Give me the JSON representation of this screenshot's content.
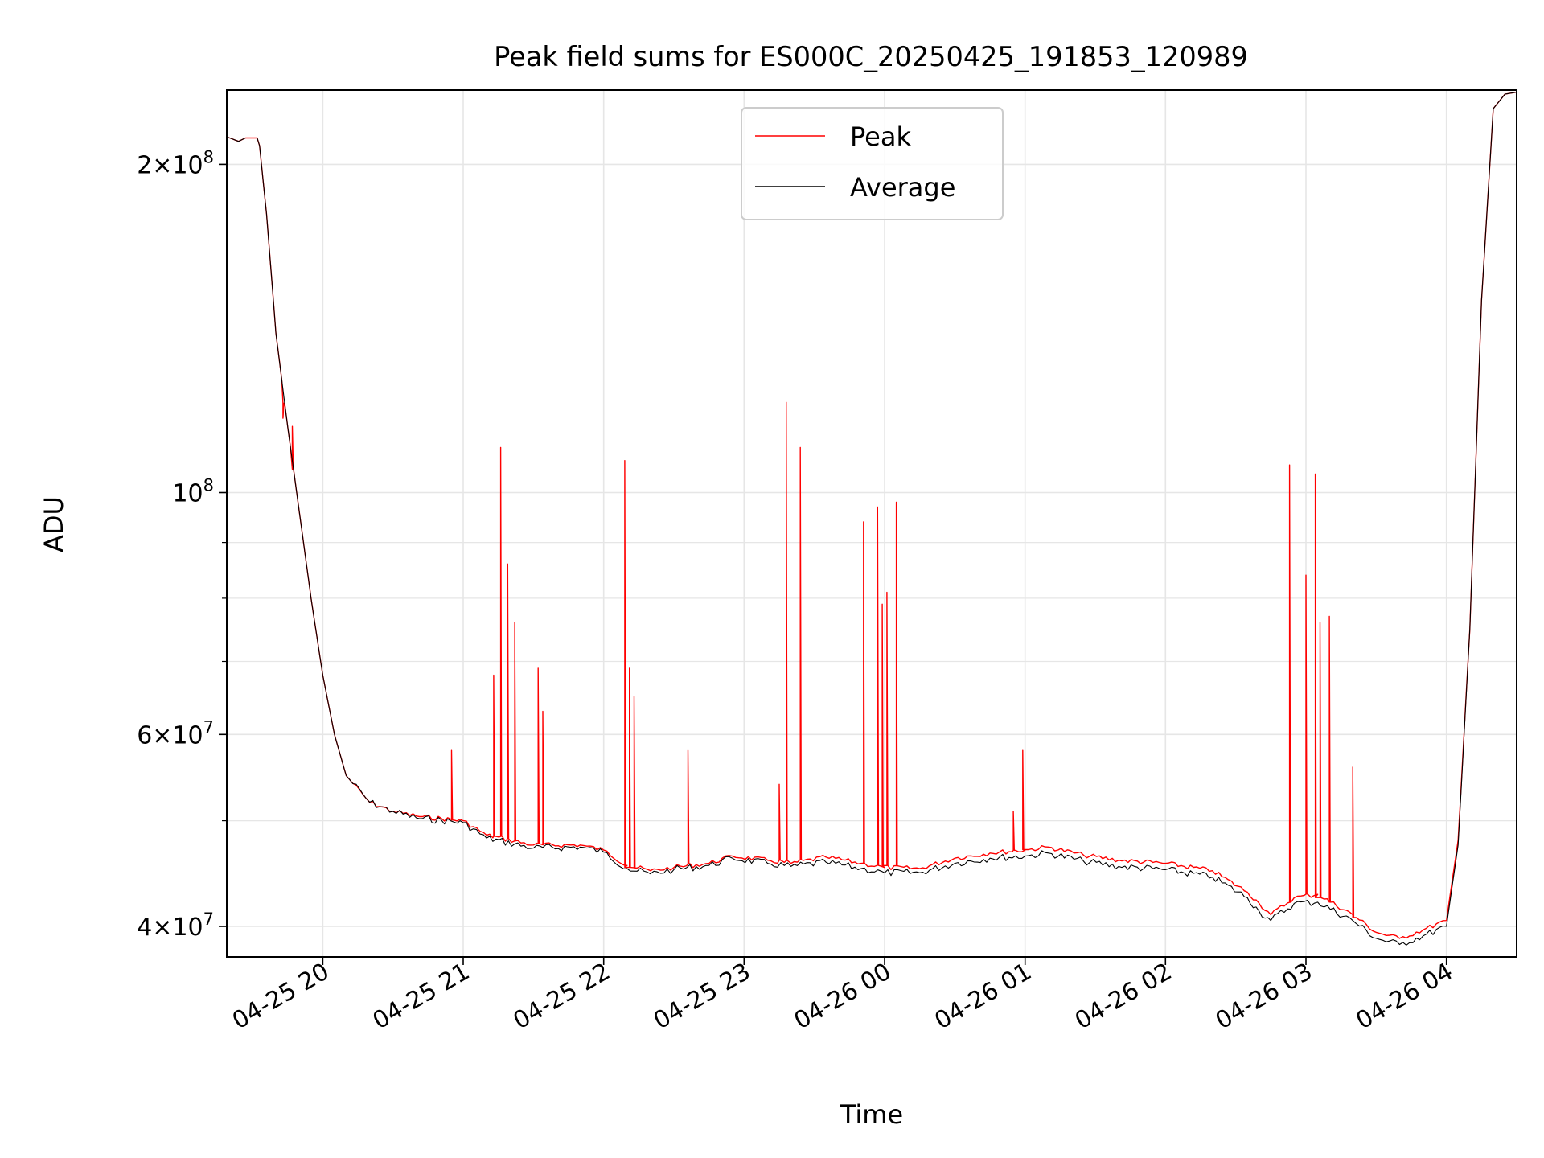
{
  "chart_data": {
    "type": "line",
    "title": "Peak field sums for ES000C_20250425_191853_120989",
    "xlabel": "Time",
    "ylabel": "ADU",
    "x_scale": "time",
    "y_scale": "log",
    "xlim": [
      "2025-04-25 19:19",
      "2025-04-26 04:30"
    ],
    "ylim": [
      37500000,
      234000000
    ],
    "grid": true,
    "legend_position": "upper center",
    "x_ticks": [
      {
        "t": "2025-04-25 20:00",
        "label": "04-25 20"
      },
      {
        "t": "2025-04-25 21:00",
        "label": "04-25 21"
      },
      {
        "t": "2025-04-25 22:00",
        "label": "04-25 22"
      },
      {
        "t": "2025-04-25 23:00",
        "label": "04-25 23"
      },
      {
        "t": "2025-04-26 00:00",
        "label": "04-26 00"
      },
      {
        "t": "2025-04-26 01:00",
        "label": "04-26 01"
      },
      {
        "t": "2025-04-26 02:00",
        "label": "04-26 02"
      },
      {
        "t": "2025-04-26 03:00",
        "label": "04-26 03"
      },
      {
        "t": "2025-04-26 04:00",
        "label": "04-26 04"
      }
    ],
    "y_major_ticks": [
      {
        "v": 40000000,
        "base": "4",
        "exp": "7"
      },
      {
        "v": 60000000,
        "base": "6",
        "exp": "7"
      },
      {
        "v": 100000000,
        "base": "",
        "exp": "8"
      },
      {
        "v": 200000000,
        "base": "2",
        "exp": "8"
      }
    ],
    "y_minor_ticks": [
      50000000,
      70000000,
      80000000,
      90000000
    ],
    "series": [
      {
        "name": "Peak",
        "color": "#ff0000",
        "baseline": [
          [
            "2025-04-25 19:19",
            212000000
          ],
          [
            "2025-04-25 19:24",
            210000000
          ],
          [
            "2025-04-25 19:27",
            211500000
          ],
          [
            "2025-04-25 19:32",
            211500000
          ],
          [
            "2025-04-25 19:33",
            208000000
          ],
          [
            "2025-04-25 19:36",
            180000000
          ],
          [
            "2025-04-25 19:40",
            140000000
          ],
          [
            "2025-04-25 19:45",
            115000000
          ],
          [
            "2025-04-25 19:50",
            96000000
          ],
          [
            "2025-04-25 19:55",
            80000000
          ],
          [
            "2025-04-25 20:00",
            68000000
          ],
          [
            "2025-04-25 20:05",
            60000000
          ],
          [
            "2025-04-25 20:10",
            55000000
          ],
          [
            "2025-04-25 20:20",
            52000000
          ],
          [
            "2025-04-25 20:30",
            51000000
          ],
          [
            "2025-04-25 20:40",
            50500000
          ],
          [
            "2025-04-25 21:00",
            50000000
          ],
          [
            "2025-04-25 21:10",
            48500000
          ],
          [
            "2025-04-25 21:30",
            47500000
          ],
          [
            "2025-04-25 21:50",
            47500000
          ],
          [
            "2025-04-25 22:00",
            47000000
          ],
          [
            "2025-04-25 22:10",
            45500000
          ],
          [
            "2025-04-25 22:20",
            45000000
          ],
          [
            "2025-04-25 22:30",
            45300000
          ],
          [
            "2025-04-25 22:45",
            45700000
          ],
          [
            "2025-04-25 22:55",
            46400000
          ],
          [
            "2025-04-25 23:10",
            46000000
          ],
          [
            "2025-04-25 23:20",
            45700000
          ],
          [
            "2025-04-25 23:35",
            46300000
          ],
          [
            "2025-04-25 23:50",
            45700000
          ],
          [
            "2025-04-26 00:00",
            45300000
          ],
          [
            "2025-04-26 00:15",
            45200000
          ],
          [
            "2025-04-26 00:30",
            46200000
          ],
          [
            "2025-04-26 00:45",
            46700000
          ],
          [
            "2025-04-26 01:00",
            47000000
          ],
          [
            "2025-04-26 01:10",
            47300000
          ],
          [
            "2025-04-26 01:25",
            46500000
          ],
          [
            "2025-04-26 01:40",
            46000000
          ],
          [
            "2025-04-26 02:00",
            45700000
          ],
          [
            "2025-04-26 02:20",
            45000000
          ],
          [
            "2025-04-26 02:35",
            43000000
          ],
          [
            "2025-04-26 02:40",
            42000000
          ],
          [
            "2025-04-26 02:45",
            41000000
          ],
          [
            "2025-04-26 02:55",
            42500000
          ],
          [
            "2025-04-26 03:05",
            42800000
          ],
          [
            "2025-04-26 03:20",
            41000000
          ],
          [
            "2025-04-26 03:30",
            39500000
          ],
          [
            "2025-04-26 03:40",
            39000000
          ],
          [
            "2025-04-26 03:50",
            39700000
          ],
          [
            "2025-04-26 04:00",
            40500000
          ],
          [
            "2025-04-26 04:05",
            48000000
          ],
          [
            "2025-04-26 04:10",
            75000000
          ],
          [
            "2025-04-26 04:15",
            150000000
          ],
          [
            "2025-04-26 04:20",
            225000000
          ],
          [
            "2025-04-26 04:25",
            232000000
          ],
          [
            "2025-04-26 04:30",
            233000000
          ]
        ],
        "spikes": [
          [
            "2025-04-25 19:43",
            117000000
          ],
          [
            "2025-04-25 19:47",
            115000000
          ],
          [
            "2025-04-25 20:55",
            58000000
          ],
          [
            "2025-04-25 21:13",
            68000000
          ],
          [
            "2025-04-25 21:16",
            110000000
          ],
          [
            "2025-04-25 21:19",
            86000000
          ],
          [
            "2025-04-25 21:22",
            76000000
          ],
          [
            "2025-04-25 21:32",
            69000000
          ],
          [
            "2025-04-25 21:34",
            63000000
          ],
          [
            "2025-04-25 22:09",
            107000000
          ],
          [
            "2025-04-25 22:11",
            69000000
          ],
          [
            "2025-04-25 22:13",
            65000000
          ],
          [
            "2025-04-25 22:36",
            58000000
          ],
          [
            "2025-04-25 23:15",
            54000000
          ],
          [
            "2025-04-25 23:18",
            121000000
          ],
          [
            "2025-04-25 23:24",
            110000000
          ],
          [
            "2025-04-25 23:51",
            94000000
          ],
          [
            "2025-04-25 23:57",
            97000000
          ],
          [
            "2025-04-25 23:59",
            79000000
          ],
          [
            "2025-04-26 00:01",
            81000000
          ],
          [
            "2025-04-26 00:05",
            98000000
          ],
          [
            "2025-04-26 00:55",
            51000000
          ],
          [
            "2025-04-26 00:59",
            58000000
          ],
          [
            "2025-04-26 02:53",
            106000000
          ],
          [
            "2025-04-26 03:00",
            84000000
          ],
          [
            "2025-04-26 03:04",
            104000000
          ],
          [
            "2025-04-26 03:06",
            76000000
          ],
          [
            "2025-04-26 03:10",
            77000000
          ],
          [
            "2025-04-26 03:20",
            56000000
          ]
        ]
      },
      {
        "name": "Average",
        "color": "#000000",
        "baseline": [
          [
            "2025-04-25 19:19",
            212000000
          ],
          [
            "2025-04-25 19:24",
            210000000
          ],
          [
            "2025-04-25 19:27",
            211500000
          ],
          [
            "2025-04-25 19:32",
            211500000
          ],
          [
            "2025-04-25 19:33",
            208000000
          ],
          [
            "2025-04-25 19:36",
            180000000
          ],
          [
            "2025-04-25 19:40",
            140000000
          ],
          [
            "2025-04-25 19:45",
            115000000
          ],
          [
            "2025-04-25 19:50",
            96000000
          ],
          [
            "2025-04-25 19:55",
            80000000
          ],
          [
            "2025-04-25 20:00",
            68000000
          ],
          [
            "2025-04-25 20:05",
            60000000
          ],
          [
            "2025-04-25 20:10",
            55000000
          ],
          [
            "2025-04-25 20:20",
            52000000
          ],
          [
            "2025-04-25 20:30",
            51000000
          ],
          [
            "2025-04-25 20:40",
            50300000
          ],
          [
            "2025-04-25 21:00",
            49800000
          ],
          [
            "2025-04-25 21:10",
            48200000
          ],
          [
            "2025-04-25 21:30",
            47200000
          ],
          [
            "2025-04-25 21:50",
            47300000
          ],
          [
            "2025-04-25 22:00",
            46800000
          ],
          [
            "2025-04-25 22:10",
            45200000
          ],
          [
            "2025-04-25 22:20",
            44700000
          ],
          [
            "2025-04-25 22:30",
            45100000
          ],
          [
            "2025-04-25 22:45",
            45500000
          ],
          [
            "2025-04-25 22:55",
            46200000
          ],
          [
            "2025-04-25 23:10",
            45700000
          ],
          [
            "2025-04-25 23:20",
            45400000
          ],
          [
            "2025-04-25 23:35",
            45800000
          ],
          [
            "2025-04-25 23:50",
            45200000
          ],
          [
            "2025-04-26 00:00",
            44800000
          ],
          [
            "2025-04-26 00:15",
            44800000
          ],
          [
            "2025-04-26 00:30",
            45700000
          ],
          [
            "2025-04-26 00:45",
            46200000
          ],
          [
            "2025-04-26 01:00",
            46400000
          ],
          [
            "2025-04-26 01:10",
            46700000
          ],
          [
            "2025-04-26 01:25",
            45900000
          ],
          [
            "2025-04-26 01:40",
            45400000
          ],
          [
            "2025-04-26 02:00",
            45100000
          ],
          [
            "2025-04-26 02:20",
            44400000
          ],
          [
            "2025-04-26 02:35",
            42500000
          ],
          [
            "2025-04-26 02:40",
            41300000
          ],
          [
            "2025-04-26 02:45",
            40500000
          ],
          [
            "2025-04-26 02:55",
            42000000
          ],
          [
            "2025-04-26 03:05",
            42100000
          ],
          [
            "2025-04-26 03:20",
            40500000
          ],
          [
            "2025-04-26 03:30",
            39000000
          ],
          [
            "2025-04-26 03:40",
            38500000
          ],
          [
            "2025-04-26 03:50",
            39200000
          ],
          [
            "2025-04-26 04:00",
            40000000
          ],
          [
            "2025-04-26 04:05",
            47500000
          ],
          [
            "2025-04-26 04:10",
            75000000
          ],
          [
            "2025-04-26 04:15",
            150000000
          ],
          [
            "2025-04-26 04:20",
            225000000
          ],
          [
            "2025-04-26 04:25",
            232000000
          ],
          [
            "2025-04-26 04:30",
            233000000
          ]
        ]
      }
    ]
  }
}
